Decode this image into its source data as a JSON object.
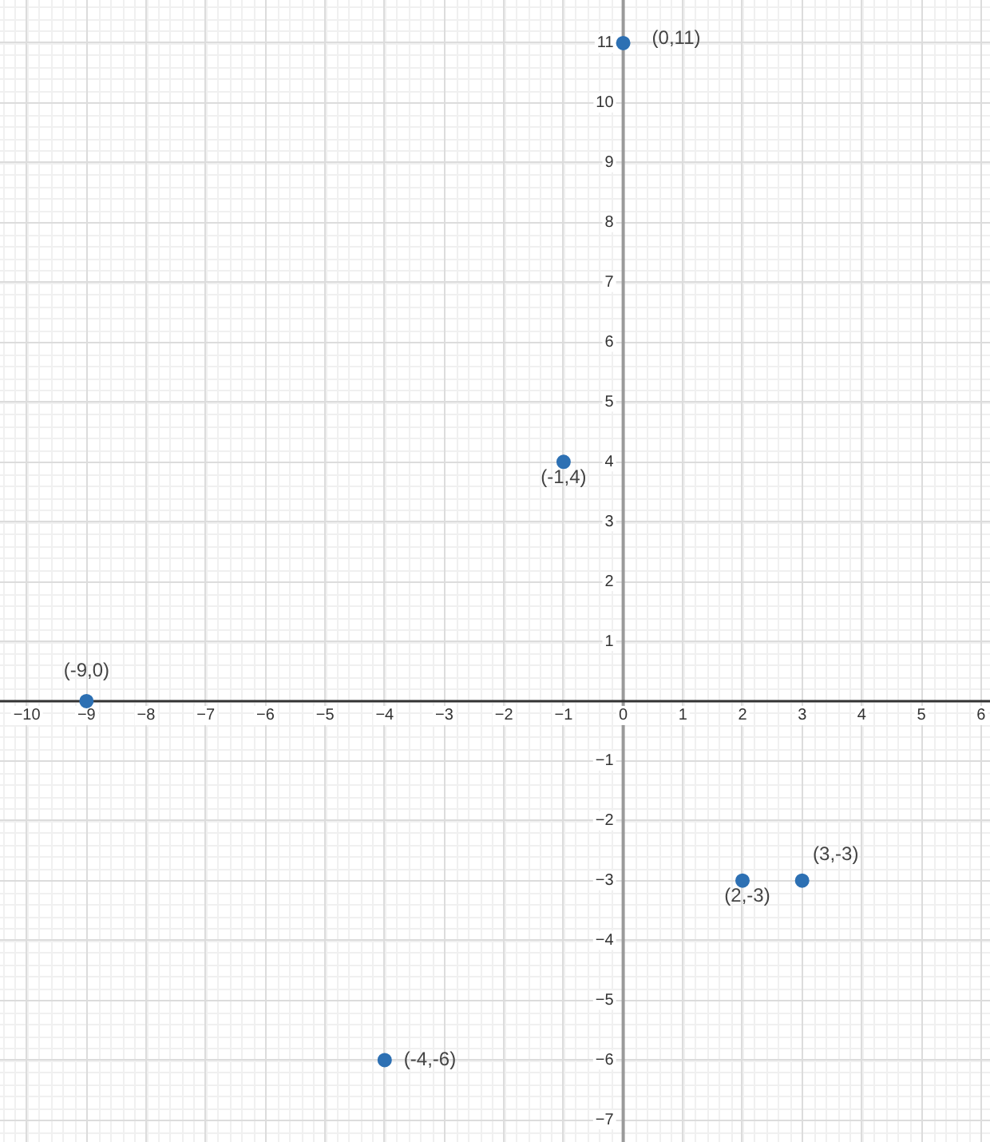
{
  "chart_data": {
    "type": "scatter",
    "x": [
      -9,
      -4,
      -1,
      0,
      2,
      3
    ],
    "values": [
      0,
      -6,
      4,
      11,
      -3,
      -3
    ],
    "color": "#2d70b3",
    "annotations": [
      {
        "text": "(-9,0)",
        "x": -9,
        "y": 0
      },
      {
        "text": "(-4,-6)",
        "x": -4,
        "y": -6
      },
      {
        "text": "(-1,4)",
        "x": -1,
        "y": 4
      },
      {
        "text": "(0,11)",
        "x": 0,
        "y": 11
      },
      {
        "text": "(2,-3)",
        "x": 2,
        "y": -3
      },
      {
        "text": "(3,-3)",
        "x": 3,
        "y": -3
      }
    ],
    "marker": "circle",
    "grid": true,
    "xlim": [
      -10.45,
      6.15
    ],
    "ylim": [
      -7.37,
      11.72
    ],
    "xticks": [
      {
        "value": -10,
        "label": "−10"
      },
      {
        "value": -9,
        "label": "−9"
      },
      {
        "value": -8,
        "label": "−8"
      },
      {
        "value": -7,
        "label": "−7"
      },
      {
        "value": -6,
        "label": "−6"
      },
      {
        "value": -5,
        "label": "−5"
      },
      {
        "value": -4,
        "label": "−4"
      },
      {
        "value": -3,
        "label": "−3"
      },
      {
        "value": -2,
        "label": "−2"
      },
      {
        "value": -1,
        "label": "−1"
      },
      0,
      1,
      2,
      3,
      4,
      5,
      6
    ],
    "yticks": [
      {
        "value": -7,
        "label": "−7"
      },
      {
        "value": -6,
        "label": "−6"
      },
      {
        "value": -5,
        "label": "−5"
      },
      {
        "value": -4,
        "label": "−4"
      },
      {
        "value": -3,
        "label": "−3"
      },
      {
        "value": -2,
        "label": "−2"
      },
      {
        "value": -1,
        "label": "−1"
      },
      1,
      2,
      3,
      4,
      5,
      6,
      7,
      8,
      9,
      10,
      11
    ]
  }
}
